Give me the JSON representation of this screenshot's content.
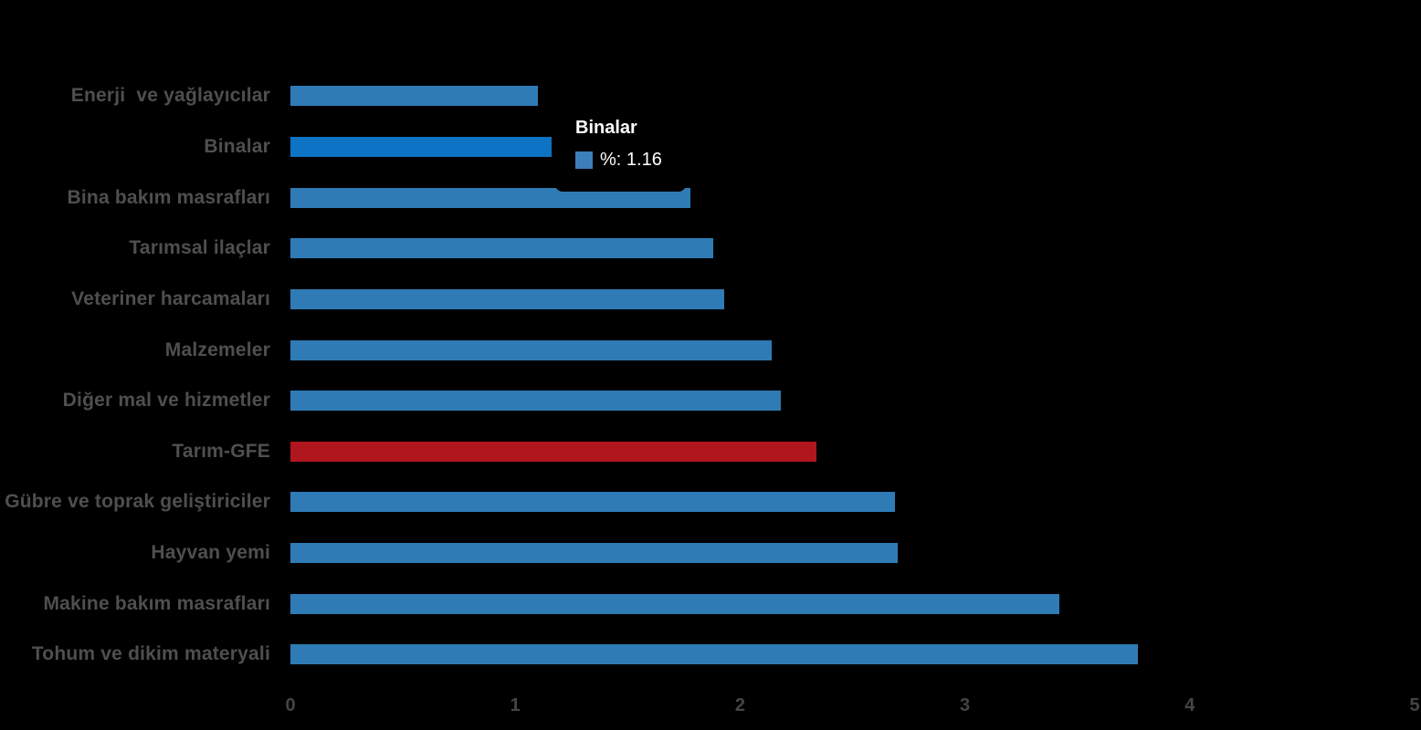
{
  "chart_data": {
    "type": "bar",
    "orientation": "horizontal",
    "title": "",
    "xlabel": "",
    "ylabel": "",
    "xlim": [
      0,
      5
    ],
    "x_ticks": [
      "0",
      "1",
      "2",
      "3",
      "4",
      "5"
    ],
    "unit": "%",
    "grid": false,
    "legend_position": "none",
    "bars": [
      {
        "category": "Enerji  ve yağlayıcılar",
        "value": 1.1,
        "role": "default"
      },
      {
        "category": "Binalar",
        "value": 1.16,
        "role": "active"
      },
      {
        "category": "Bina bakım masrafları",
        "value": 1.78,
        "role": "default"
      },
      {
        "category": "Tarımsal ilaçlar",
        "value": 1.88,
        "role": "default"
      },
      {
        "category": "Veteriner harcamaları",
        "value": 1.93,
        "role": "default"
      },
      {
        "category": "Malzemeler",
        "value": 2.14,
        "role": "default"
      },
      {
        "category": "Diğer mal ve hizmetler",
        "value": 2.18,
        "role": "default"
      },
      {
        "category": "Tarım-GFE",
        "value": 2.34,
        "role": "highlight"
      },
      {
        "category": "Gübre ve toprak geliştiriciler",
        "value": 2.69,
        "role": "default"
      },
      {
        "category": "Hayvan yemi",
        "value": 2.7,
        "role": "default"
      },
      {
        "category": "Makine bakım masrafları",
        "value": 3.42,
        "role": "default"
      },
      {
        "category": "Tohum ve dikim materyali",
        "value": 3.77,
        "role": "default"
      }
    ]
  },
  "tooltip": {
    "title": "Binalar",
    "value_label": "%",
    "value": "1.16",
    "display_text": "%: 1.16"
  },
  "colors": {
    "background": "#000000",
    "bar_default": "#2F7BB5",
    "bar_active": "#0D73C4",
    "bar_highlight": "#B0161D",
    "category_label": "#4F4F51",
    "axis_label": "#454545",
    "tooltip_background": "#000000",
    "tooltip_text": "#FFFFFF",
    "tooltip_marker": "#3D7FB9"
  }
}
